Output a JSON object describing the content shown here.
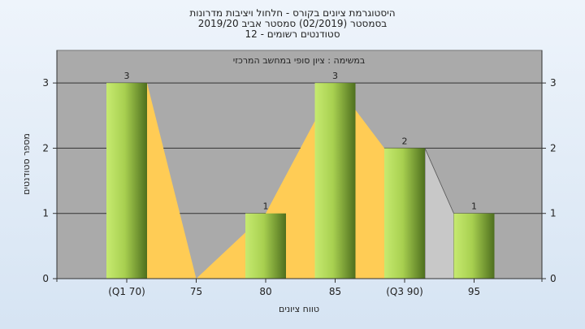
{
  "chart_data": {
    "type": "bar",
    "title_lines": [
      "היסטוגרמת ציונים בקורס - חלחול ויציבות מדרונות",
      "בסמסטר (02/2019) סמסטר אביב 2019/20",
      "סטודנטים רשומים - 12"
    ],
    "annotation": "במשימה : ציון סופי במחשב המרכזי",
    "categories": [
      "(Q1 70)",
      "75",
      "80",
      "85",
      "(Q3 90)",
      "95"
    ],
    "values": [
      3,
      0,
      1,
      3,
      2,
      1
    ],
    "data_labels": [
      "3",
      "",
      "1",
      "3",
      "2",
      "1"
    ],
    "xlabel": "טווח ציונים",
    "ylabel": "מספר סטודנטים",
    "ylim": [
      0,
      3.5
    ],
    "yticks": [
      0,
      1,
      2,
      3
    ],
    "grid": true,
    "band": {
      "name": "interquartile-range",
      "from_category": 0,
      "to_category": 4,
      "color": "#ffcc55"
    },
    "colors": {
      "plot_bg": "#aaaaaa",
      "bar_light": "#c6ea70",
      "bar_dark": "#4e6f1e",
      "band": "#ffcc55",
      "shadow": "#c8c8c8"
    }
  }
}
